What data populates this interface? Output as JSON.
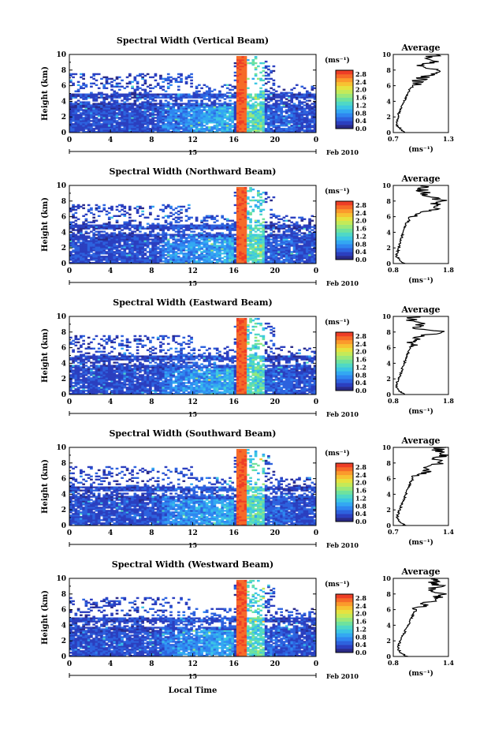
{
  "figure": {
    "xlabel": "Local Time",
    "date_label": "Feb 2010",
    "day_label": "15",
    "colorbar_unit": "(ms⁻¹)",
    "avg_title": "Average",
    "avg_xlabel": "(ms⁻¹)",
    "ylabel": "Height (km)"
  },
  "colormap": [
    "#2a2a88",
    "#2b3fbf",
    "#2d62de",
    "#2f86f0",
    "#33a8f2",
    "#3cc6e3",
    "#4fd8c6",
    "#6fe29d",
    "#9ae87a",
    "#c4ea58",
    "#e6e23f",
    "#f7c232",
    "#fb9a2c",
    "#f66b28",
    "#ee3e26"
  ],
  "chart_data": [
    {
      "type": "heatmap",
      "title": "Spectral Width (Vertical Beam)",
      "x_ticks": [
        "0",
        "4",
        "8",
        "12",
        "16",
        "20",
        "0"
      ],
      "xlim": [
        0,
        24
      ],
      "y_ticks": [
        "0",
        "2",
        "4",
        "6",
        "8",
        "10"
      ],
      "ylim": [
        0,
        10
      ],
      "colorbar_ticks": [
        "2.8",
        "2.4",
        "2.0",
        "1.6",
        "1.2",
        "0.8",
        "0.4",
        "0.0"
      ],
      "colorbar_range": [
        0,
        3.0
      ],
      "average": {
        "title": "Average",
        "x_ticks": [
          "0.7",
          "1.3"
        ],
        "xlim": [
          0.7,
          1.3
        ],
        "y_ticks": [
          "0",
          "2",
          "4",
          "6",
          "8",
          "10"
        ],
        "height_km": [
          0,
          0.5,
          1,
          1.5,
          2,
          2.5,
          3,
          3.5,
          4,
          4.5,
          5,
          5.5,
          6,
          6.5,
          7,
          7.5,
          8,
          8.5,
          9,
          9.5,
          10
        ],
        "value": [
          0.82,
          0.78,
          0.73,
          0.74,
          0.75,
          0.76,
          0.78,
          0.8,
          0.82,
          0.84,
          0.85,
          0.88,
          0.92,
          0.96,
          1.02,
          1.1,
          1.25,
          0.98,
          1.15,
          1.05,
          1.2
        ]
      }
    },
    {
      "type": "heatmap",
      "title": "Spectral Width (Northward Beam)",
      "x_ticks": [
        "0",
        "4",
        "8",
        "12",
        "16",
        "20",
        "0"
      ],
      "xlim": [
        0,
        24
      ],
      "y_ticks": [
        "0",
        "2",
        "4",
        "6",
        "8",
        "10"
      ],
      "ylim": [
        0,
        10
      ],
      "colorbar_ticks": [
        "2.8",
        "2.4",
        "2.0",
        "1.6",
        "1.2",
        "0.8",
        "0.4",
        "0.0"
      ],
      "colorbar_range": [
        0,
        3.0
      ],
      "average": {
        "title": "Average",
        "x_ticks": [
          "0.8",
          "1.8"
        ],
        "xlim": [
          0.8,
          1.8
        ],
        "y_ticks": [
          "0",
          "2",
          "4",
          "6",
          "8",
          "10"
        ],
        "height_km": [
          0,
          0.5,
          1,
          1.5,
          2,
          2.5,
          3,
          3.5,
          4,
          4.5,
          5,
          5.5,
          6,
          6.5,
          7,
          7.5,
          8,
          8.5,
          9,
          9.5,
          10
        ],
        "value": [
          1.0,
          0.92,
          0.85,
          0.88,
          0.9,
          0.92,
          0.94,
          0.96,
          0.98,
          1.0,
          1.02,
          1.08,
          1.1,
          1.3,
          1.55,
          1.5,
          1.75,
          1.45,
          1.4,
          1.3,
          1.35
        ]
      }
    },
    {
      "type": "heatmap",
      "title": "Spectral Width (Eastward Beam)",
      "x_ticks": [
        "0",
        "4",
        "8",
        "12",
        "16",
        "20",
        "0"
      ],
      "xlim": [
        0,
        24
      ],
      "y_ticks": [
        "0",
        "2",
        "4",
        "6",
        "8",
        "10"
      ],
      "ylim": [
        0,
        10
      ],
      "colorbar_ticks": [
        "2.8",
        "2.4",
        "2.0",
        "1.6",
        "1.2",
        "0.8",
        "0.4",
        "0.0"
      ],
      "colorbar_range": [
        0,
        3.0
      ],
      "average": {
        "title": "Average",
        "x_ticks": [
          "0.8",
          "1.8"
        ],
        "xlim": [
          0.8,
          1.8
        ],
        "y_ticks": [
          "0",
          "2",
          "4",
          "6",
          "8",
          "10"
        ],
        "height_km": [
          0,
          0.5,
          1,
          1.5,
          2,
          2.5,
          3,
          3.5,
          4,
          4.5,
          5,
          5.5,
          6,
          6.5,
          7,
          7.5,
          8,
          8.5,
          9,
          9.5,
          10
        ],
        "value": [
          1.0,
          0.9,
          0.85,
          0.87,
          0.9,
          0.93,
          0.95,
          0.97,
          1.0,
          1.02,
          1.05,
          1.08,
          1.1,
          1.15,
          1.2,
          1.3,
          1.75,
          1.15,
          1.35,
          1.1,
          1.2
        ]
      }
    },
    {
      "type": "heatmap",
      "title": "Spectral Width (Southward Beam)",
      "x_ticks": [
        "0",
        "4",
        "8",
        "12",
        "16",
        "20",
        "0"
      ],
      "xlim": [
        0,
        24
      ],
      "y_ticks": [
        "0",
        "2",
        "4",
        "6",
        "8",
        "10"
      ],
      "ylim": [
        0,
        10
      ],
      "colorbar_ticks": [
        "2.8",
        "2.4",
        "2.0",
        "1.6",
        "1.2",
        "0.8",
        "0.4",
        "0.0"
      ],
      "colorbar_range": [
        0,
        3.0
      ],
      "average": {
        "title": "Average",
        "x_ticks": [
          "0.7",
          "1.4"
        ],
        "xlim": [
          0.7,
          1.4
        ],
        "y_ticks": [
          "0",
          "2",
          "4",
          "6",
          "8",
          "10"
        ],
        "height_km": [
          0,
          0.5,
          1,
          1.5,
          2,
          2.5,
          3,
          3.5,
          4,
          4.5,
          5,
          5.5,
          6,
          6.5,
          7,
          7.5,
          8,
          8.5,
          9,
          9.5,
          10
        ],
        "value": [
          0.85,
          0.78,
          0.75,
          0.76,
          0.78,
          0.8,
          0.82,
          0.84,
          0.86,
          0.88,
          0.9,
          0.92,
          0.95,
          1.0,
          1.15,
          1.1,
          1.3,
          1.2,
          1.35,
          1.25,
          1.3
        ]
      }
    },
    {
      "type": "heatmap",
      "title": "Spectral Width (Westward Beam)",
      "x_ticks": [
        "0",
        "4",
        "8",
        "12",
        "16",
        "20",
        "0"
      ],
      "xlim": [
        0,
        24
      ],
      "y_ticks": [
        "0",
        "2",
        "4",
        "6",
        "8",
        "10"
      ],
      "ylim": [
        0,
        10
      ],
      "colorbar_ticks": [
        "2.8",
        "2.4",
        "2.0",
        "1.6",
        "1.2",
        "0.8",
        "0.4",
        "0.0"
      ],
      "colorbar_range": [
        0,
        3.0
      ],
      "average": {
        "title": "Average",
        "x_ticks": [
          "0.8",
          "1.4"
        ],
        "xlim": [
          0.8,
          1.4
        ],
        "y_ticks": [
          "0",
          "2",
          "4",
          "6",
          "8",
          "10"
        ],
        "height_km": [
          0,
          0.5,
          1,
          1.5,
          2,
          2.5,
          3,
          3.5,
          4,
          4.5,
          5,
          5.5,
          6,
          6.5,
          7,
          7.5,
          8,
          8.5,
          9,
          9.5,
          10
        ],
        "value": [
          0.95,
          0.88,
          0.85,
          0.86,
          0.88,
          0.9,
          0.92,
          0.94,
          0.96,
          0.98,
          1.0,
          1.02,
          1.05,
          1.1,
          1.2,
          1.25,
          1.35,
          1.2,
          1.3,
          1.25,
          1.25
        ]
      }
    }
  ]
}
